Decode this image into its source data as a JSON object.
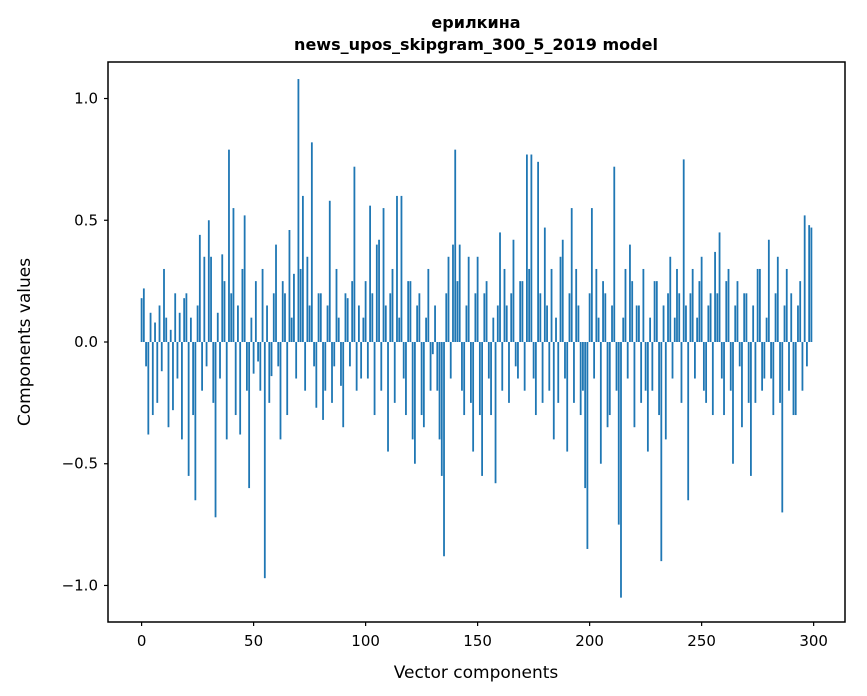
{
  "title_line1": "ерилкина",
  "title_line2": "news_upos_skipgram_300_5_2019 model",
  "chart_data": {
    "type": "bar",
    "title": "ерилкина\nnews_upos_skipgram_300_5_2019 model",
    "xlabel": "Vector components",
    "ylabel": "Components values",
    "bar_color": "#1f77b4",
    "grid": false,
    "legend": null,
    "xlim": [
      -15,
      314
    ],
    "ylim": [
      -1.15,
      1.15
    ],
    "xticks": [
      0,
      50,
      100,
      150,
      200,
      250,
      300
    ],
    "xtick_labels": [
      "0",
      "50",
      "100",
      "150",
      "200",
      "250",
      "300"
    ],
    "yticks": [
      -1.0,
      -0.5,
      0.0,
      0.5,
      1.0
    ],
    "ytick_labels": [
      "−1.0",
      "−0.5",
      "0.0",
      "0.5",
      "1.0"
    ],
    "x_start": 0,
    "values": [
      0.18,
      0.22,
      -0.1,
      -0.38,
      0.12,
      -0.3,
      0.08,
      -0.25,
      0.15,
      -0.12,
      0.3,
      0.1,
      -0.35,
      0.05,
      -0.28,
      0.2,
      -0.15,
      0.12,
      -0.4,
      0.18,
      0.2,
      -0.55,
      0.1,
      -0.3,
      -0.65,
      0.15,
      0.44,
      -0.2,
      0.35,
      -0.1,
      0.5,
      0.35,
      -0.25,
      -0.72,
      0.12,
      -0.15,
      0.36,
      0.25,
      -0.4,
      0.79,
      0.2,
      0.55,
      -0.3,
      0.15,
      -0.38,
      0.3,
      0.52,
      -0.2,
      -0.6,
      0.1,
      -0.13,
      0.25,
      -0.08,
      -0.2,
      0.3,
      -0.97,
      0.15,
      -0.25,
      -0.14,
      0.2,
      0.4,
      -0.1,
      -0.4,
      0.25,
      0.2,
      -0.3,
      0.46,
      0.1,
      0.28,
      -0.15,
      1.08,
      0.3,
      0.6,
      -0.2,
      0.35,
      0.15,
      0.82,
      -0.1,
      -0.27,
      0.2,
      0.2,
      -0.32,
      -0.2,
      0.15,
      0.58,
      -0.25,
      -0.1,
      0.3,
      0.1,
      -0.18,
      -0.35,
      0.2,
      0.18,
      -0.1,
      0.25,
      0.72,
      -0.2,
      0.15,
      -0.15,
      0.1,
      0.25,
      -0.15,
      0.56,
      0.2,
      -0.3,
      0.4,
      0.42,
      -0.2,
      0.55,
      0.15,
      -0.45,
      0.2,
      0.3,
      -0.25,
      0.6,
      0.1,
      0.6,
      -0.15,
      -0.3,
      0.25,
      0.25,
      -0.4,
      -0.5,
      0.15,
      0.2,
      -0.3,
      -0.35,
      0.1,
      0.3,
      -0.2,
      -0.05,
      0.15,
      -0.2,
      -0.4,
      -0.55,
      -0.88,
      0.2,
      0.35,
      -0.15,
      0.4,
      0.79,
      0.25,
      0.4,
      -0.2,
      -0.3,
      0.15,
      0.35,
      -0.25,
      -0.45,
      0.2,
      0.35,
      -0.3,
      -0.55,
      0.2,
      0.25,
      -0.15,
      -0.3,
      0.1,
      -0.58,
      0.15,
      0.45,
      -0.2,
      0.3,
      0.15,
      -0.25,
      0.2,
      0.42,
      -0.1,
      -0.15,
      0.25,
      0.25,
      -0.2,
      0.77,
      0.3,
      0.77,
      -0.15,
      -0.3,
      0.74,
      0.2,
      -0.25,
      0.47,
      0.15,
      -0.2,
      0.3,
      -0.4,
      0.1,
      -0.25,
      0.35,
      0.42,
      -0.15,
      -0.45,
      0.2,
      0.55,
      -0.25,
      0.3,
      0.15,
      -0.3,
      -0.2,
      -0.6,
      -0.85,
      0.2,
      0.55,
      -0.15,
      0.3,
      0.1,
      -0.5,
      0.25,
      0.2,
      -0.35,
      -0.3,
      0.15,
      0.72,
      -0.2,
      -0.75,
      -1.05,
      0.1,
      0.3,
      -0.15,
      0.4,
      0.25,
      -0.35,
      0.15,
      0.15,
      -0.25,
      0.3,
      -0.2,
      -0.45,
      0.1,
      -0.2,
      0.25,
      0.25,
      -0.3,
      -0.9,
      0.15,
      -0.4,
      0.2,
      0.35,
      -0.15,
      0.1,
      0.3,
      0.2,
      -0.25,
      0.75,
      0.15,
      -0.65,
      0.2,
      0.3,
      -0.15,
      0.1,
      0.25,
      0.35,
      -0.2,
      -0.25,
      0.15,
      0.2,
      -0.3,
      0.37,
      0.2,
      0.45,
      -0.15,
      -0.3,
      0.25,
      0.3,
      -0.2,
      -0.5,
      0.15,
      0.25,
      -0.1,
      -0.35,
      0.2,
      0.2,
      -0.25,
      -0.55,
      0.15,
      -0.25,
      0.3,
      0.3,
      -0.2,
      -0.15,
      0.1,
      0.42,
      -0.15,
      -0.3,
      0.2,
      0.35,
      -0.25,
      -0.7,
      0.15,
      0.3,
      -0.2,
      0.2,
      -0.3,
      -0.3,
      0.15,
      0.25,
      -0.2,
      0.52,
      -0.1,
      0.48,
      0.47
    ]
  }
}
